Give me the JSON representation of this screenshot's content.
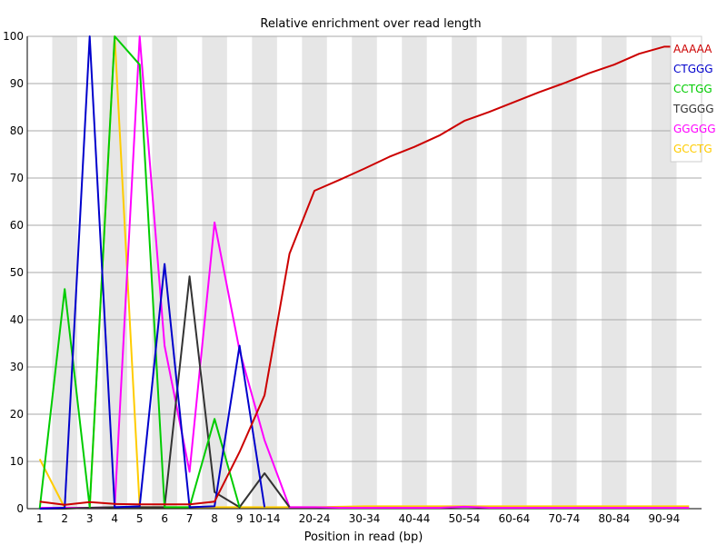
{
  "chart_data": {
    "type": "line",
    "title": "Relative enrichment over read length",
    "xlabel": "Position in read (bp)",
    "ylabel": "",
    "ylim": [
      0,
      100
    ],
    "yticks": [
      0,
      10,
      20,
      30,
      40,
      50,
      60,
      70,
      80,
      90,
      100
    ],
    "categories": [
      "1",
      "2",
      "3",
      "4",
      "5",
      "6",
      "7",
      "8",
      "9",
      "10-14",
      "15-19",
      "20-24",
      "25-29",
      "30-34",
      "35-39",
      "40-44",
      "45-49",
      "50-54",
      "55-59",
      "60-64",
      "65-69",
      "70-74",
      "75-79",
      "80-84",
      "85-89",
      "90-94",
      "95-99"
    ],
    "tick_labels": [
      "1",
      "2",
      "3",
      "4",
      "5",
      "6",
      "7",
      "8",
      "9",
      "10-14",
      "",
      "20-24",
      "",
      "30-34",
      "",
      "40-44",
      "",
      "50-54",
      "",
      "60-64",
      "",
      "70-74",
      "",
      "80-84",
      "",
      "90-94",
      ""
    ],
    "grid": "alternating vertical bands, horizontal gridlines",
    "legend_position": "top-right",
    "series": [
      {
        "name": "AAAAA",
        "color": "#cc0000",
        "values": [
          1.5,
          0.8,
          1.4,
          1.0,
          0.9,
          0.9,
          0.9,
          1.5,
          12,
          24,
          54,
          67.3,
          69.6,
          72,
          74.5,
          76.6,
          79,
          82.1,
          84,
          86.1,
          88.2,
          90.1,
          92.2,
          94,
          96.3,
          97.8,
          97.8
        ]
      },
      {
        "name": "CTGGG",
        "color": "#0000cc",
        "values": [
          0,
          0.2,
          100,
          0.3,
          0.5,
          51.8,
          0.3,
          0.5,
          34.5,
          0.3,
          null,
          null,
          null,
          null,
          null,
          null,
          null,
          null,
          null,
          null,
          null,
          null,
          null,
          null,
          null,
          null,
          null
        ]
      },
      {
        "name": "CCTGG",
        "color": "#00cc00",
        "values": [
          0,
          46.5,
          0.3,
          100,
          94,
          0.3,
          0.3,
          19,
          0.3,
          null,
          null,
          null,
          null,
          null,
          null,
          null,
          null,
          null,
          null,
          null,
          null,
          null,
          null,
          null,
          null,
          null,
          null
        ]
      },
      {
        "name": "TGGGG",
        "color": "#333333",
        "values": [
          0,
          0,
          0.2,
          0.3,
          0.3,
          0.3,
          49.2,
          3.5,
          0.3,
          7.5,
          0.3,
          null,
          null,
          null,
          null,
          null,
          null,
          null,
          null,
          null,
          null,
          null,
          null,
          null,
          null,
          null,
          null
        ]
      },
      {
        "name": "GGGGG",
        "color": "#ff00ff",
        "values": [
          0.2,
          0.2,
          0.2,
          0.3,
          100,
          34.5,
          7.8,
          60.6,
          33.5,
          14.5,
          0.3,
          0.3,
          0.2,
          0.2,
          0.2,
          0.2,
          0.2,
          0.4,
          0.2,
          0.2,
          0.2,
          0.2,
          0.2,
          0.2,
          0.2,
          0.2,
          0.2
        ]
      },
      {
        "name": "GCCTG",
        "color": "#ffcc00",
        "values": [
          10.5,
          0.2,
          0.2,
          100,
          0.3,
          0.3,
          0.3,
          0.3,
          0.3,
          0.3,
          0.3,
          0.3,
          0.4,
          0.5,
          0.5,
          0.5,
          0.5,
          0.5,
          0.5,
          0.5,
          0.5,
          0.5,
          0.5,
          0.5,
          0.5,
          0.5,
          0.5
        ]
      }
    ]
  }
}
